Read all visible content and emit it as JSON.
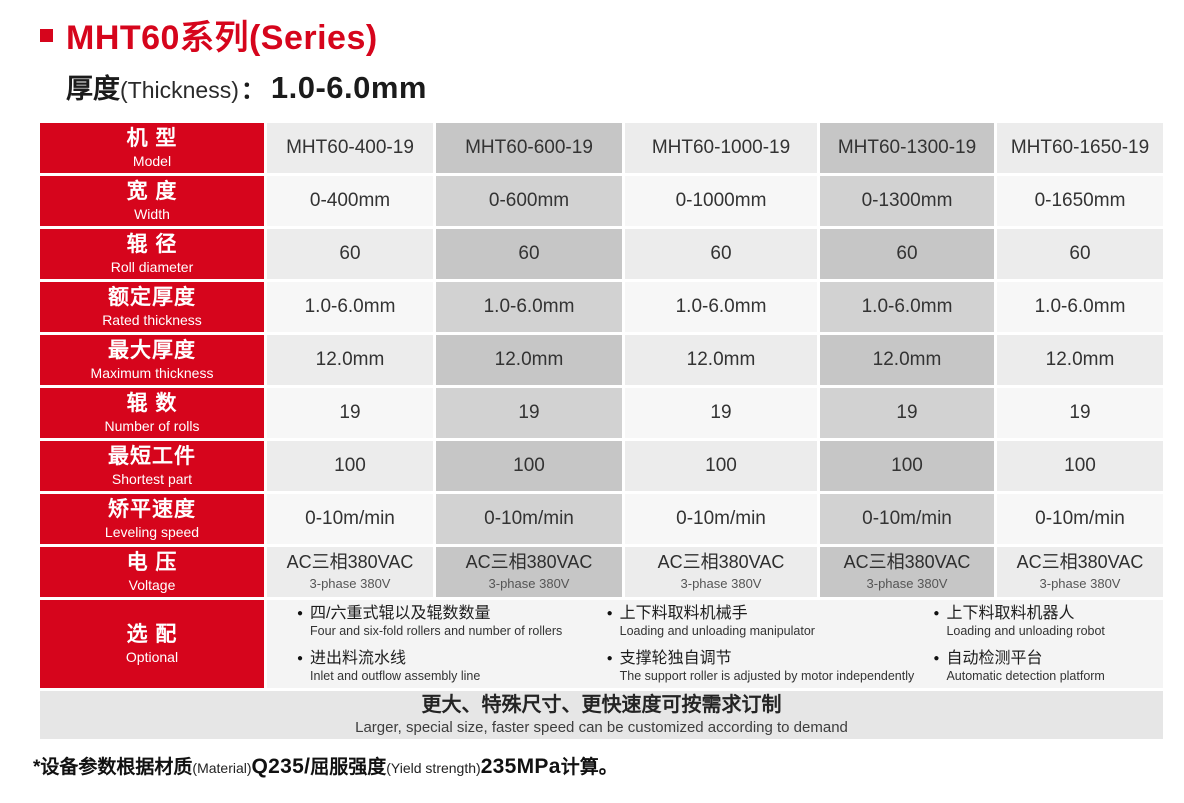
{
  "colors": {
    "accent_red": "#d6051c",
    "col_light_a": "#ececec",
    "col_light_b": "#f7f7f7",
    "col_dark_a": "#c6c6c6",
    "col_dark_b": "#d2d2d2",
    "optional_bg": "#f4f4f4",
    "banner_bg": "#e6e6e6",
    "text_dark": "#333333"
  },
  "page": {
    "title": "MHT60系列(Series)",
    "subtitle": {
      "zh": "厚度",
      "en": "(Thickness)",
      "colon": "：",
      "value": "1.0-6.0mm"
    },
    "footnote": {
      "a": "*设备参数根据材质",
      "b": "(Material)",
      "c": "Q235/",
      "d": "屈服强度",
      "e": "(Yield strength)",
      "f": "235MPa",
      "g": "计算。"
    }
  },
  "table": {
    "rows": [
      {
        "label_zh": "机 型",
        "label_en": "Model",
        "values": [
          "MHT60-400-19",
          "MHT60-600-19",
          "MHT60-1000-19",
          "MHT60-1300-19",
          "MHT60-1650-19"
        ]
      },
      {
        "label_zh": "宽 度",
        "label_en": "Width",
        "values": [
          "0-400mm",
          "0-600mm",
          "0-1000mm",
          "0-1300mm",
          "0-1650mm"
        ]
      },
      {
        "label_zh": "辊 径",
        "label_en": "Roll diameter",
        "values": [
          "60",
          "60",
          "60",
          "60",
          "60"
        ]
      },
      {
        "label_zh": "额定厚度",
        "label_en": "Rated thickness",
        "values": [
          "1.0-6.0mm",
          "1.0-6.0mm",
          "1.0-6.0mm",
          "1.0-6.0mm",
          "1.0-6.0mm"
        ]
      },
      {
        "label_zh": "最大厚度",
        "label_en": "Maximum thickness",
        "values": [
          "12.0mm",
          "12.0mm",
          "12.0mm",
          "12.0mm",
          "12.0mm"
        ]
      },
      {
        "label_zh": "辊 数",
        "label_en": "Number of rolls",
        "values": [
          "19",
          "19",
          "19",
          "19",
          "19"
        ]
      },
      {
        "label_zh": "最短工件",
        "label_en": "Shortest part",
        "values": [
          "100",
          "100",
          "100",
          "100",
          "100"
        ]
      },
      {
        "label_zh": "矫平速度",
        "label_en": "Leveling speed",
        "values": [
          "0-10m/min",
          "0-10m/min",
          "0-10m/min",
          "0-10m/min",
          "0-10m/min"
        ]
      },
      {
        "label_zh": "电 压",
        "label_en": "Voltage",
        "values": [
          {
            "zh": "AC三相380VAC",
            "en": "3-phase 380V"
          },
          {
            "zh": "AC三相380VAC",
            "en": "3-phase 380V"
          },
          {
            "zh": "AC三相380VAC",
            "en": "3-phase 380V"
          },
          {
            "zh": "AC三相380VAC",
            "en": "3-phase 380V"
          },
          {
            "zh": "AC三相380VAC",
            "en": "3-phase 380V"
          }
        ]
      }
    ],
    "optional": {
      "label_zh": "选 配",
      "label_en": "Optional",
      "bullet": "●",
      "groups": [
        [
          {
            "zh": "四/六重式辊以及辊数数量",
            "en": "Four and six-fold rollers and number of rollers"
          },
          {
            "zh": "进出料流水线",
            "en": "Inlet and outflow assembly line"
          }
        ],
        [
          {
            "zh": "上下料取料机械手",
            "en": "Loading and unloading manipulator"
          },
          {
            "zh": "支撑轮独自调节",
            "en": "The support roller is adjusted by motor independently"
          }
        ],
        [
          {
            "zh": "上下料取料机器人",
            "en": "Loading and unloading robot"
          },
          {
            "zh": "自动检测平台",
            "en": "Automatic detection platform"
          }
        ]
      ]
    },
    "banner": {
      "zh": "更大、特殊尺寸、更快速度可按需求订制",
      "en": "Larger, special size, faster speed can be customized according to demand"
    }
  }
}
